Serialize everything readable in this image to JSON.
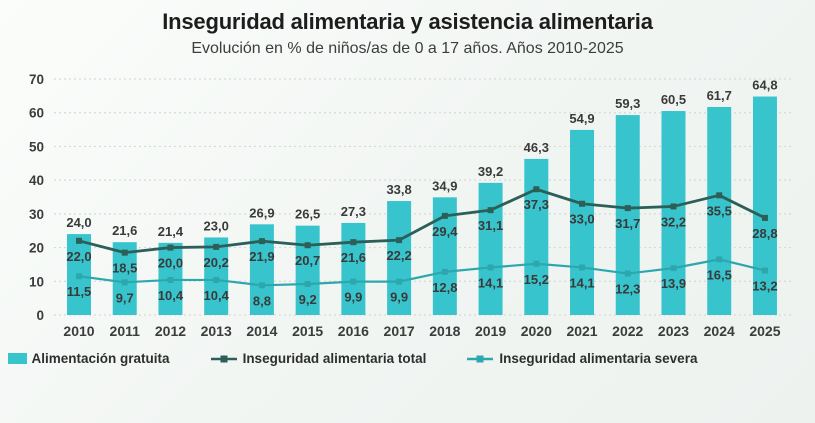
{
  "chart_data": {
    "type": "bar",
    "title": "Inseguridad alimentaria y asistencia alimentaria",
    "subtitle": "Evolución en % de niños/as de 0 a 17 años. Años 2010-2025",
    "categories": [
      "2010",
      "2011",
      "2012",
      "2013",
      "2014",
      "2015",
      "2016",
      "2017",
      "2018",
      "2019",
      "2020",
      "2021",
      "2022",
      "2023",
      "2024",
      "2025"
    ],
    "series": [
      {
        "name": "Alimentación gratuita",
        "kind": "bar",
        "color": "#38c4cc",
        "values": [
          24.0,
          21.6,
          21.4,
          23.0,
          26.9,
          26.5,
          27.3,
          33.8,
          34.9,
          39.2,
          46.3,
          54.9,
          59.3,
          60.5,
          61.7,
          64.8
        ]
      },
      {
        "name": "Inseguridad alimentaria total",
        "kind": "line",
        "color": "#2b5f57",
        "values": [
          22.0,
          18.5,
          20.0,
          20.2,
          21.9,
          20.7,
          21.6,
          22.2,
          29.4,
          31.1,
          37.3,
          33.0,
          31.7,
          32.2,
          35.5,
          28.8
        ]
      },
      {
        "name": "Inseguridad alimentaria severa",
        "kind": "line",
        "color": "#2da7ae",
        "values": [
          11.5,
          9.7,
          10.4,
          10.4,
          8.8,
          9.2,
          9.9,
          9.9,
          12.8,
          14.1,
          15.2,
          14.1,
          12.3,
          13.9,
          16.5,
          13.2
        ]
      }
    ],
    "ylim": [
      0,
      70
    ],
    "yticks": [
      0,
      10,
      20,
      30,
      40,
      50,
      60,
      70
    ],
    "grid": true,
    "legend_position": "bottom",
    "decimal_separator": ",",
    "value_labels": true,
    "colors": {
      "grid": "#d6dad6",
      "axis_text": "#3c3c3c",
      "value_label_text": "#3a3a3a"
    }
  }
}
